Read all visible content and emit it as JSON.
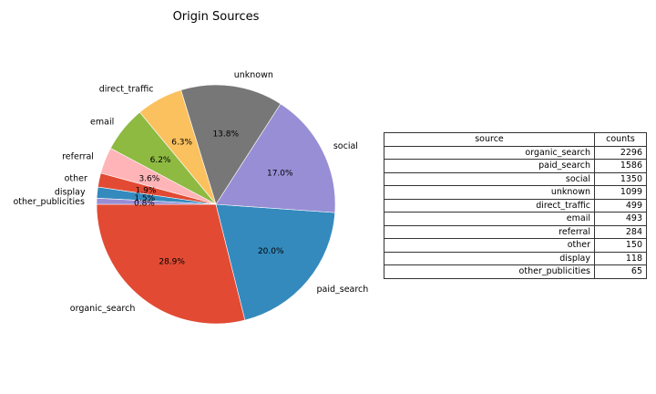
{
  "chart_data": {
    "type": "pie",
    "title": "Origin Sources",
    "slices": [
      {
        "label": "organic_search",
        "value": 2296,
        "pct_label": "28.9%",
        "color": "#E24A33"
      },
      {
        "label": "paid_search",
        "value": 1586,
        "pct_label": "20.0%",
        "color": "#348ABD"
      },
      {
        "label": "social",
        "value": 1350,
        "pct_label": "17.0%",
        "color": "#988ED5"
      },
      {
        "label": "unknown",
        "value": 1099,
        "pct_label": "13.8%",
        "color": "#777777"
      },
      {
        "label": "direct_traffic",
        "value": 499,
        "pct_label": "6.3%",
        "color": "#FBC15E"
      },
      {
        "label": "email",
        "value": 493,
        "pct_label": "6.2%",
        "color": "#8EBA42"
      },
      {
        "label": "referral",
        "value": 284,
        "pct_label": "3.6%",
        "color": "#FFB5B8"
      },
      {
        "label": "other",
        "value": 150,
        "pct_label": "1.9%",
        "color": "#E24A33"
      },
      {
        "label": "display",
        "value": 118,
        "pct_label": "1.5%",
        "color": "#348ABD"
      },
      {
        "label": "other_publicities",
        "value": 65,
        "pct_label": "0.8%",
        "color": "#988ED5"
      }
    ],
    "table": {
      "headers": [
        "source",
        "counts"
      ],
      "rows": [
        [
          "organic_search",
          "2296"
        ],
        [
          "paid_search",
          "1586"
        ],
        [
          "social",
          "1350"
        ],
        [
          "unknown",
          "1099"
        ],
        [
          "direct_traffic",
          "499"
        ],
        [
          "email",
          "493"
        ],
        [
          "referral",
          "284"
        ],
        [
          "other",
          "150"
        ],
        [
          "display",
          "118"
        ],
        [
          "other_publicities",
          "65"
        ]
      ]
    }
  }
}
